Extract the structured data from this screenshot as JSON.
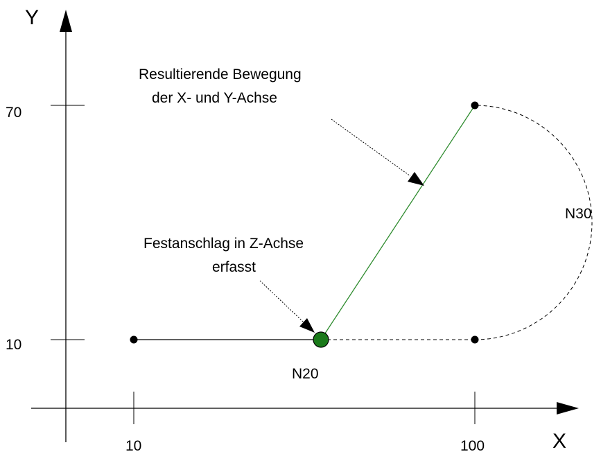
{
  "axes": {
    "x_title": "X",
    "y_title": "Y",
    "x_ticks": [
      "10",
      "100"
    ],
    "y_ticks": [
      "10",
      "70"
    ]
  },
  "labels": {
    "n20": "N20",
    "n30": "N30",
    "resulting_line1": "Resultierende Bewegung",
    "resulting_line2": "der X- und Y-Achse",
    "stop_line1": "Festanschlag in Z-Achse",
    "stop_line2": "erfasst"
  },
  "colors": {
    "line": "#000000",
    "path_green": "#2e8b2e",
    "contact_point": "#1a7a1a",
    "annotation_arrow": "#000000"
  }
}
